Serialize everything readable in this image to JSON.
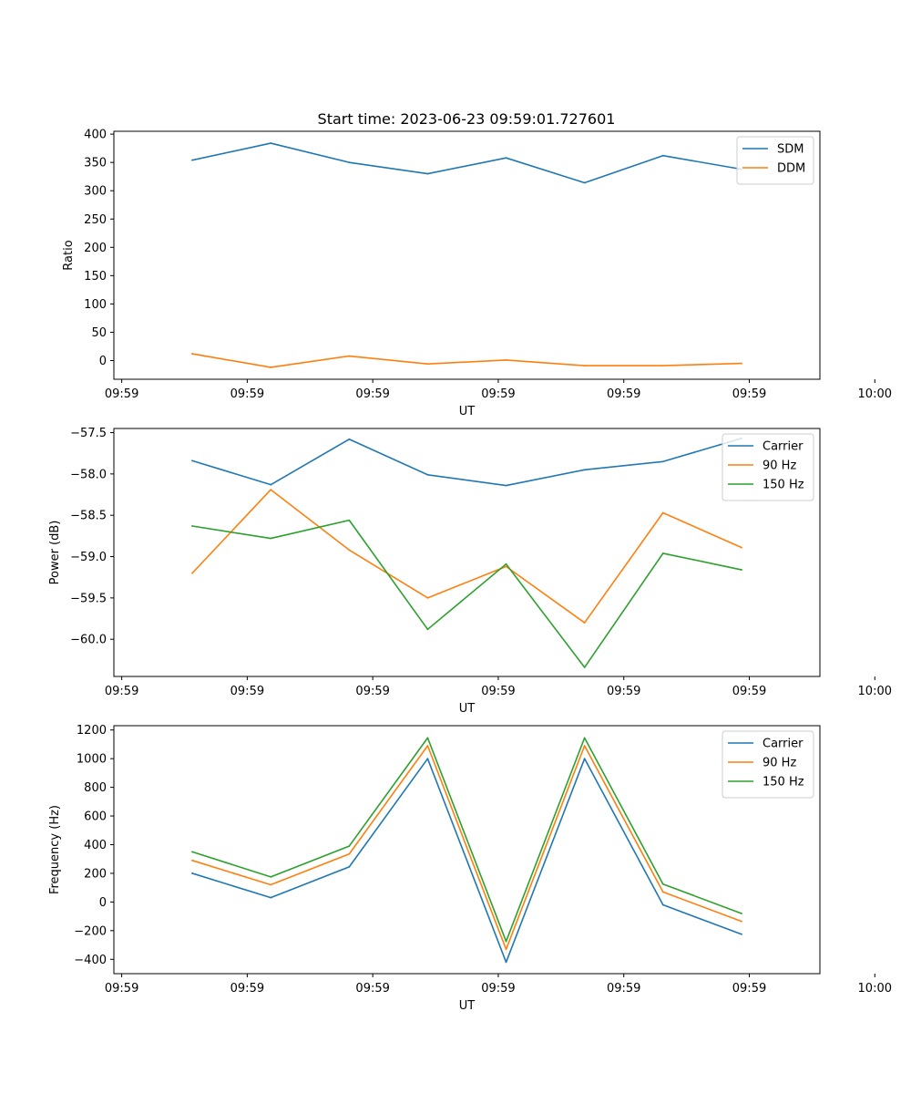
{
  "figure": {
    "title": "Start time: 2023-06-23 09:59:01.727601"
  },
  "chart_data": [
    {
      "type": "line",
      "ylabel": "Ratio",
      "xlabel": "UT",
      "x_tick_labels": [
        "09:59",
        "09:59",
        "09:59",
        "09:59",
        "09:59",
        "09:59",
        "10:00"
      ],
      "y_ticks": [
        0,
        50,
        100,
        150,
        200,
        250,
        300,
        350,
        400
      ],
      "ylim": [
        -33,
        405
      ],
      "x": [
        1,
        2,
        3,
        4,
        5,
        6,
        7,
        8
      ],
      "xlim": [
        0,
        9
      ],
      "legend_position": "top-right",
      "series": [
        {
          "name": "SDM",
          "color": "#1f77b4",
          "values": [
            354,
            384,
            350,
            330,
            358,
            314,
            362,
            338
          ]
        },
        {
          "name": "DDM",
          "color": "#ff7f0e",
          "values": [
            12,
            -12,
            8,
            -6,
            1,
            -9,
            -9,
            -5
          ]
        }
      ]
    },
    {
      "type": "line",
      "ylabel": "Power (dB)",
      "xlabel": "UT",
      "x_tick_labels": [
        "09:59",
        "09:59",
        "09:59",
        "09:59",
        "09:59",
        "09:59",
        "10:00"
      ],
      "y_ticks": [
        -60.0,
        -59.5,
        -59.0,
        -58.5,
        -58.0,
        -57.5
      ],
      "y_tick_labels": [
        "−60.0",
        "−59.5",
        "−59.0",
        "−58.5",
        "−58.0",
        "−57.5"
      ],
      "ylim": [
        -60.45,
        -57.45
      ],
      "x": [
        1,
        2,
        3,
        4,
        5,
        6,
        7,
        8
      ],
      "xlim": [
        0,
        9
      ],
      "legend_position": "top-right",
      "series": [
        {
          "name": "Carrier",
          "color": "#1f77b4",
          "values": [
            -57.84,
            -58.13,
            -57.58,
            -58.01,
            -58.14,
            -57.95,
            -57.85,
            -57.57
          ]
        },
        {
          "name": "90 Hz",
          "color": "#ff7f0e",
          "values": [
            -59.2,
            -58.19,
            -58.92,
            -59.5,
            -59.12,
            -59.8,
            -58.47,
            -58.89
          ]
        },
        {
          "name": "150 Hz",
          "color": "#2ca02c",
          "values": [
            -58.63,
            -58.78,
            -58.56,
            -59.88,
            -59.09,
            -60.34,
            -58.96,
            -59.16
          ]
        }
      ]
    },
    {
      "type": "line",
      "ylabel": "Frequency (Hz)",
      "xlabel": "UT",
      "x_tick_labels": [
        "09:59",
        "09:59",
        "09:59",
        "09:59",
        "09:59",
        "09:59",
        "10:00"
      ],
      "y_ticks": [
        -400,
        -200,
        0,
        200,
        400,
        600,
        800,
        1000,
        1200
      ],
      "y_tick_labels": [
        "−400",
        "−200",
        "0",
        "200",
        "400",
        "600",
        "800",
        "1000",
        "1200"
      ],
      "ylim": [
        -500,
        1230
      ],
      "x": [
        1,
        2,
        3,
        4,
        5,
        6,
        7,
        8
      ],
      "xlim": [
        0,
        9
      ],
      "legend_position": "top-right",
      "series": [
        {
          "name": "Carrier",
          "color": "#1f77b4",
          "values": [
            200,
            30,
            245,
            1000,
            -420,
            1000,
            -20,
            -225
          ]
        },
        {
          "name": "90 Hz",
          "color": "#ff7f0e",
          "values": [
            290,
            120,
            335,
            1090,
            -330,
            1090,
            70,
            -135
          ]
        },
        {
          "name": "150 Hz",
          "color": "#2ca02c",
          "values": [
            350,
            175,
            390,
            1145,
            -275,
            1145,
            125,
            -80
          ]
        }
      ]
    }
  ]
}
